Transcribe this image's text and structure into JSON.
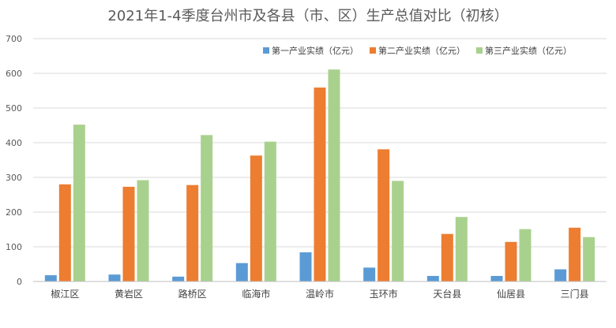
{
  "chart_data": {
    "type": "bar",
    "title": "2021年1-4季度台州市及各县（市、区）生产总值对比（初核）",
    "xlabel": "",
    "ylabel": "",
    "ylim": [
      0,
      700
    ],
    "yticks": [
      0,
      100,
      200,
      300,
      400,
      500,
      600,
      700
    ],
    "grid": true,
    "legend_position": "top-right",
    "categories": [
      "椒江区",
      "黄岩区",
      "路桥区",
      "临海市",
      "温岭市",
      "玉环市",
      "天台县",
      "仙居县",
      "三门县"
    ],
    "series": [
      {
        "name": "第一产业实绩（亿元）",
        "color": "#5B9BD5",
        "values": [
          18,
          20,
          14,
          53,
          84,
          40,
          16,
          16,
          35
        ]
      },
      {
        "name": "第二产业实绩（亿元）",
        "color": "#ED7D31",
        "values": [
          280,
          273,
          278,
          363,
          559,
          381,
          137,
          114,
          155
        ]
      },
      {
        "name": "第三产业实绩（亿元）",
        "color": "#A9D18E",
        "values": [
          452,
          292,
          422,
          403,
          611,
          290,
          186,
          151,
          128
        ]
      }
    ]
  }
}
